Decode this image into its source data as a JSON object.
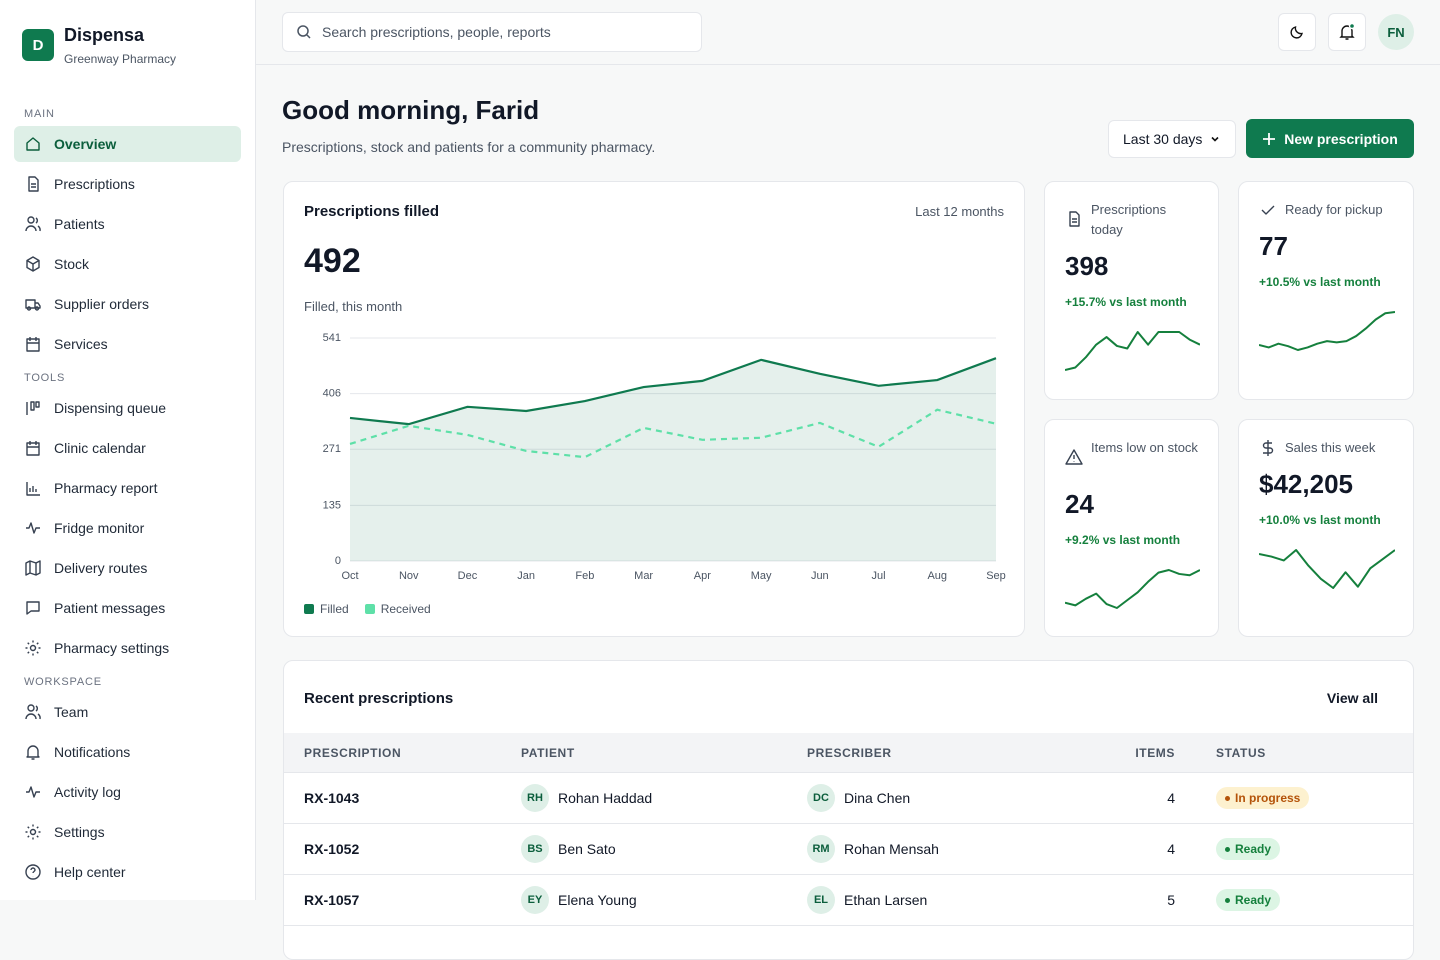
{
  "sidebar": {
    "logo": "D",
    "brand": "Dispensa",
    "org": "Greenway Pharmacy",
    "active": "Overview",
    "sections": [
      {
        "title": "MAIN",
        "items": [
          "Overview",
          "Prescriptions",
          "Patients",
          "Stock",
          "Supplier orders",
          "Services"
        ]
      },
      {
        "title": "TOOLS",
        "items": [
          "Dispensing queue",
          "Clinic calendar",
          "Pharmacy report",
          "Fridge monitor",
          "Delivery routes",
          "Patient messages",
          "Pharmacy settings"
        ]
      },
      {
        "title": "WORKSPACE",
        "items": [
          "Team",
          "Notifications",
          "Activity log",
          "Settings",
          "Help center"
        ]
      }
    ]
  },
  "topbar": {
    "search_placeholder": "Search prescriptions, people, reports",
    "avatar": "FN"
  },
  "header": {
    "greeting": "Good morning, Farid",
    "subtitle": "Prescriptions, stock and patients for a community pharmacy.",
    "range": "Last 30 days",
    "action": "New prescription"
  },
  "overview_chart": {
    "type": "line",
    "title": "Prescriptions filled",
    "period": "Last 12 months",
    "headline": "492",
    "headline_caption": "Filled, this month",
    "categories": [
      "Oct",
      "Nov",
      "Dec",
      "Jan",
      "Feb",
      "Mar",
      "Apr",
      "May",
      "Jun",
      "Jul",
      "Aug",
      "Sep"
    ],
    "ylim": [
      0,
      541
    ],
    "yticks": [
      0,
      135,
      271,
      406,
      541
    ],
    "grid": true,
    "series": [
      {
        "name": "Filled",
        "color": "#0f7a4f",
        "dashed": false,
        "area": true,
        "values": [
          347,
          332,
          374,
          364,
          388,
          422,
          437,
          488,
          454,
          425,
          439,
          492
        ]
      },
      {
        "name": "Received",
        "color": "#5ee0a8",
        "dashed": true,
        "area": false,
        "values": [
          284,
          328,
          306,
          267,
          252,
          323,
          294,
          299,
          335,
          277,
          367,
          333
        ]
      }
    ]
  },
  "kpis": [
    {
      "label": "Prescriptions today",
      "value": "398",
      "change": "+15.7% vs last month",
      "trend": [
        10,
        12,
        20,
        30,
        36,
        29,
        27,
        40,
        30,
        40,
        40,
        40,
        34,
        30
      ]
    },
    {
      "label": "Ready for pickup",
      "value": "77",
      "change": "+10.5% vs last month",
      "trend": [
        10,
        8,
        11,
        9,
        6,
        8,
        11,
        13,
        12,
        13,
        17,
        23,
        30,
        35,
        36
      ]
    },
    {
      "label": "Items low on stock",
      "value": "24",
      "change": "+9.2% vs last month",
      "trend": [
        12,
        10,
        15,
        19,
        11,
        8,
        14,
        20,
        28,
        35,
        37,
        34,
        33,
        37
      ]
    },
    {
      "label": "Sales this week",
      "value": "$42,205",
      "change": "+10.0% vs last month",
      "trend": [
        34,
        32,
        29,
        37,
        25,
        15,
        8,
        20,
        9,
        23,
        30,
        37
      ]
    }
  ],
  "table": {
    "title": "Recent prescriptions",
    "action": "View all",
    "columns": [
      "PRESCRIPTION",
      "PATIENT",
      "PRESCRIBER",
      "ITEMS",
      "STATUS"
    ],
    "rows": [
      {
        "id": "RX-1043",
        "patient_initials": "RH",
        "patient": "Rohan Haddad",
        "prescriber_initials": "DC",
        "prescriber": "Dina Chen",
        "items": 4,
        "status": "In progress",
        "status_color": "#b45309",
        "status_bg": "#fdf1cf"
      },
      {
        "id": "RX-1052",
        "patient_initials": "BS",
        "patient": "Ben Sato",
        "prescriber_initials": "RM",
        "prescriber": "Rohan Mensah",
        "items": 4,
        "status": "Ready",
        "status_color": "#15803d",
        "status_bg": "#dcf5e4"
      },
      {
        "id": "RX-1057",
        "patient_initials": "EY",
        "patient": "Elena Young",
        "prescriber_initials": "EL",
        "prescriber": "Ethan Larsen",
        "items": 5,
        "status": "Ready",
        "status_color": "#15803d",
        "status_bg": "#dcf5e4"
      }
    ]
  }
}
